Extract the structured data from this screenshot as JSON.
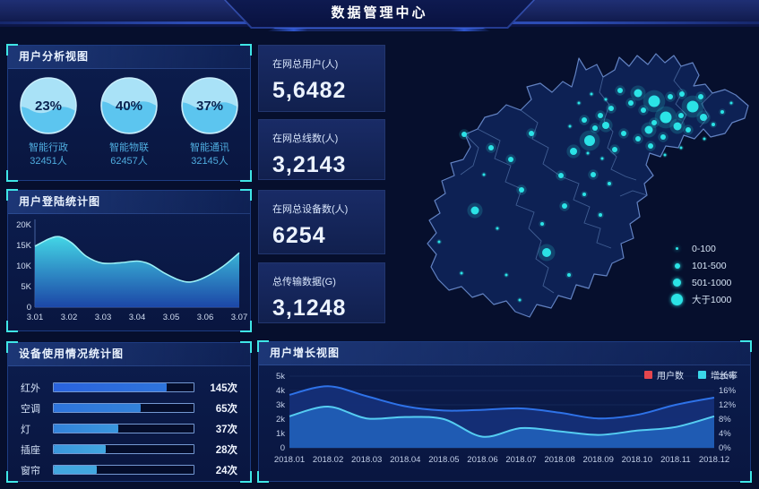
{
  "header": {
    "title": "数据管理中心"
  },
  "panels": {
    "user_analysis": {
      "title": "用户分析视图"
    },
    "login_stats": {
      "title": "用户登陆统计图"
    },
    "device_usage": {
      "title": "设备使用情况统计图"
    },
    "user_growth": {
      "title": "用户增长视图"
    }
  },
  "stat_cards": [
    {
      "label": "在网总用户(人)",
      "value": "5,6482"
    },
    {
      "label": "在网总线数(人)",
      "value": "3,2143"
    },
    {
      "label": "在网总设备数(人)",
      "value": "6254"
    },
    {
      "label": "总传输数据(G)",
      "value": "3,1248"
    }
  ],
  "colors": {
    "accent_cyan": "#3fe6e6",
    "dot_cyan": "#2be3e6",
    "map_land": "#0d2154",
    "map_border": "#6282c2",
    "map_inner_border": "#4a699f",
    "users_legend": "#e5464e",
    "growth_legend": "#3ad6e8"
  },
  "chart_data": [
    {
      "id": "user_analysis",
      "type": "pie",
      "title": "用户分析视图",
      "items": [
        {
          "label": "智能行政",
          "percent": 23,
          "count": "32451人"
        },
        {
          "label": "智能物联",
          "percent": 40,
          "count": "62457人"
        },
        {
          "label": "智能通讯",
          "percent": 37,
          "count": "32145人"
        }
      ]
    },
    {
      "id": "login_stats",
      "type": "area",
      "title": "用户登陆统计图",
      "x": [
        "3.01",
        "3.02",
        "3.03",
        "3.04",
        "3.05",
        "3.06",
        "3.07"
      ],
      "values": [
        15000,
        14000,
        10800,
        11200,
        7300,
        7200,
        13000
      ],
      "ylim": [
        0,
        20000
      ],
      "yticks": [
        "0",
        "5K",
        "10K",
        "15K",
        "20K"
      ],
      "curve": [
        [
          0,
          14.8
        ],
        [
          0.07,
          16.6
        ],
        [
          0.12,
          17.1
        ],
        [
          0.18,
          15.6
        ],
        [
          0.25,
          12.4
        ],
        [
          0.33,
          10.7
        ],
        [
          0.42,
          10.8
        ],
        [
          0.5,
          11.2
        ],
        [
          0.56,
          10.5
        ],
        [
          0.63,
          8.4
        ],
        [
          0.7,
          6.7
        ],
        [
          0.76,
          6.1
        ],
        [
          0.83,
          7.2
        ],
        [
          0.92,
          9.9
        ],
        [
          1,
          13.2
        ]
      ],
      "grid": false
    },
    {
      "id": "device_usage",
      "type": "bar",
      "orientation": "horizontal",
      "title": "设备使用情况统计图",
      "categories": [
        "红外",
        "空调",
        "灯",
        "插座",
        "窗帘"
      ],
      "values": [
        145,
        65,
        37,
        28,
        24
      ],
      "unit": "次",
      "value_labels": [
        "145次",
        "65次",
        "37次",
        "28次",
        "24次"
      ],
      "fill_pct": [
        81,
        62,
        46,
        37,
        31
      ],
      "bar_colors": [
        "#2a63de",
        "#2e74dc",
        "#3282da",
        "#3a97dd",
        "#42a7e0"
      ]
    },
    {
      "id": "user_growth",
      "type": "area",
      "title": "用户增长视图",
      "x": [
        "2018.01",
        "2018.02",
        "2018.03",
        "2018.04",
        "2018.05",
        "2018.06",
        "2018.07",
        "2018.08",
        "2018.09",
        "2018.10",
        "2018.11",
        "2018.12"
      ],
      "series": [
        {
          "name": "用户数",
          "axis": "left",
          "legend_color": "#e5464e",
          "line_color": "#2e72e8",
          "fill_color": "#152f78",
          "values": [
            3700,
            4300,
            3600,
            2900,
            2600,
            2650,
            2750,
            2450,
            2050,
            2300,
            3000,
            3500
          ]
        },
        {
          "name": "增长率",
          "axis": "right",
          "legend_color": "#3ad6e8",
          "line_color": "#55cdf2",
          "fill_color": "#2061ba",
          "values": [
            8.8,
            11.5,
            8.2,
            8.6,
            8.0,
            3.1,
            5.5,
            4.6,
            3.6,
            4.8,
            5.8,
            8.8
          ]
        }
      ],
      "ylim_left": [
        0,
        5000
      ],
      "yticks_left": [
        "0",
        "1k",
        "2k",
        "3k",
        "4k",
        "5k"
      ],
      "ylim_right": [
        0,
        20
      ],
      "yticks_right": [
        "0%",
        "4%",
        "8%",
        "12%",
        "16%",
        "20%"
      ],
      "legend_position": "top-right",
      "grid": true
    },
    {
      "id": "region_map",
      "type": "scatter",
      "legend": [
        {
          "label": "0-100",
          "r": 1.5
        },
        {
          "label": "101-500",
          "r": 3
        },
        {
          "label": "501-1000",
          "r": 4.5
        },
        {
          "label": "大于1000",
          "r": 6.5
        }
      ],
      "points": [
        [
          300,
          68,
          6.5
        ],
        [
          313,
          86,
          6.5
        ],
        [
          343,
          74,
          6.5
        ],
        [
          228,
          112,
          6
        ],
        [
          282,
          59,
          4.5
        ],
        [
          294,
          100,
          4.5
        ],
        [
          326,
          96,
          4.5
        ],
        [
          355,
          86,
          4
        ],
        [
          246,
          95,
          4
        ],
        [
          100,
          190,
          4.5
        ],
        [
          180,
          237,
          5
        ],
        [
          210,
          124,
          4
        ],
        [
          262,
          56,
          3
        ],
        [
          274,
          70,
          3
        ],
        [
          288,
          78,
          3
        ],
        [
          300,
          92,
          3
        ],
        [
          318,
          63,
          3
        ],
        [
          330,
          84,
          3
        ],
        [
          338,
          100,
          3
        ],
        [
          252,
          76,
          3
        ],
        [
          240,
          84,
          3
        ],
        [
          310,
          108,
          3
        ],
        [
          296,
          118,
          3
        ],
        [
          282,
          110,
          3
        ],
        [
          266,
          104,
          3
        ],
        [
          256,
          122,
          3
        ],
        [
          234,
          98,
          3
        ],
        [
          222,
          89,
          3
        ],
        [
          331,
          60,
          3
        ],
        [
          352,
          63,
          3
        ],
        [
          163,
          104,
          3
        ],
        [
          140,
          133,
          3
        ],
        [
          196,
          151,
          3
        ],
        [
          232,
          150,
          3
        ],
        [
          88,
          105,
          3
        ],
        [
          152,
          167,
          3
        ],
        [
          200,
          185,
          3
        ],
        [
          118,
          120,
          3
        ],
        [
          366,
          94,
          2
        ],
        [
          376,
          80,
          2
        ],
        [
          250,
          160,
          2
        ],
        [
          222,
          172,
          2
        ],
        [
          205,
          262,
          2
        ],
        [
          240,
          195,
          2
        ],
        [
          175,
          205,
          2
        ],
        [
          216,
          70,
          1.5
        ],
        [
          230,
          60,
          1.5
        ],
        [
          246,
          66,
          1.5
        ],
        [
          356,
          110,
          1.5
        ],
        [
          386,
          70,
          1.5
        ],
        [
          206,
          96,
          1.5
        ],
        [
          226,
          126,
          1.5
        ],
        [
          242,
          132,
          1.5
        ],
        [
          110,
          150,
          1.5
        ],
        [
          125,
          210,
          1.5
        ],
        [
          85,
          260,
          1.5
        ],
        [
          135,
          262,
          1.5
        ],
        [
          60,
          225,
          1.5
        ],
        [
          150,
          290,
          1.5
        ],
        [
          330,
          120,
          1.5
        ],
        [
          312,
          128,
          1.5
        ]
      ]
    }
  ]
}
